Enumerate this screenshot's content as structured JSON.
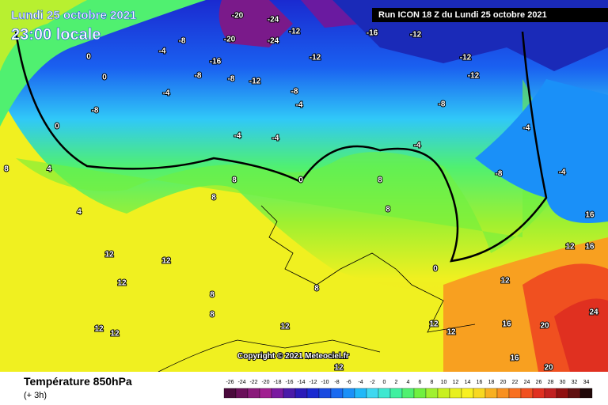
{
  "header": {
    "date": "Lundi 25 octobre 2021",
    "time": "23:00 locale",
    "run": "Run ICON 18 Z du Lundi 25 octobre 2021"
  },
  "map": {
    "copyright": "Copyright © 2021 Meteociel.fr",
    "contour_labels": [
      "-20",
      "-24",
      "-20",
      "-24",
      "-16",
      "-12",
      "-12",
      "-12",
      "-12",
      "-12",
      "-16",
      "-12",
      "-8",
      "-8",
      "-8",
      "-8",
      "-8",
      "-8",
      "-8",
      "-4",
      "-4",
      "-4",
      "-4",
      "-4",
      "-4",
      "-4",
      "-4",
      "0",
      "0",
      "0",
      "0",
      "0",
      "4",
      "4",
      "8",
      "8",
      "8",
      "8",
      "8",
      "12",
      "12",
      "12",
      "12",
      "12",
      "12",
      "12",
      "12",
      "12",
      "12",
      "12",
      "16",
      "16",
      "16",
      "16",
      "20",
      "20",
      "24",
      "8",
      "8",
      "8"
    ]
  },
  "footer": {
    "title": "Température 850hPa",
    "step": "(+ 3h)"
  },
  "scale": {
    "ticks": [
      -26,
      -24,
      -22,
      -20,
      -18,
      -16,
      -14,
      -12,
      -10,
      -8,
      -6,
      -4,
      -2,
      0,
      2,
      4,
      6,
      8,
      10,
      12,
      14,
      16,
      18,
      20,
      22,
      24,
      26,
      28,
      30,
      32,
      34
    ],
    "colors": [
      "#4a0a3c",
      "#6a0f5a",
      "#8a1a7a",
      "#a02090",
      "#7a1aa0",
      "#4a1aa8",
      "#2a1ab8",
      "#1a2ad0",
      "#1a4ae0",
      "#1a6af0",
      "#1a90f8",
      "#20b8f8",
      "#40d8f0",
      "#40e8d0",
      "#40f0a0",
      "#50f070",
      "#70f040",
      "#a0f030",
      "#c8f020",
      "#e8f020",
      "#f8f020",
      "#f8d820",
      "#f8b020",
      "#f89020",
      "#f87020",
      "#f05020",
      "#e03020",
      "#c02020",
      "#901010",
      "#601010",
      "#200808"
    ]
  }
}
